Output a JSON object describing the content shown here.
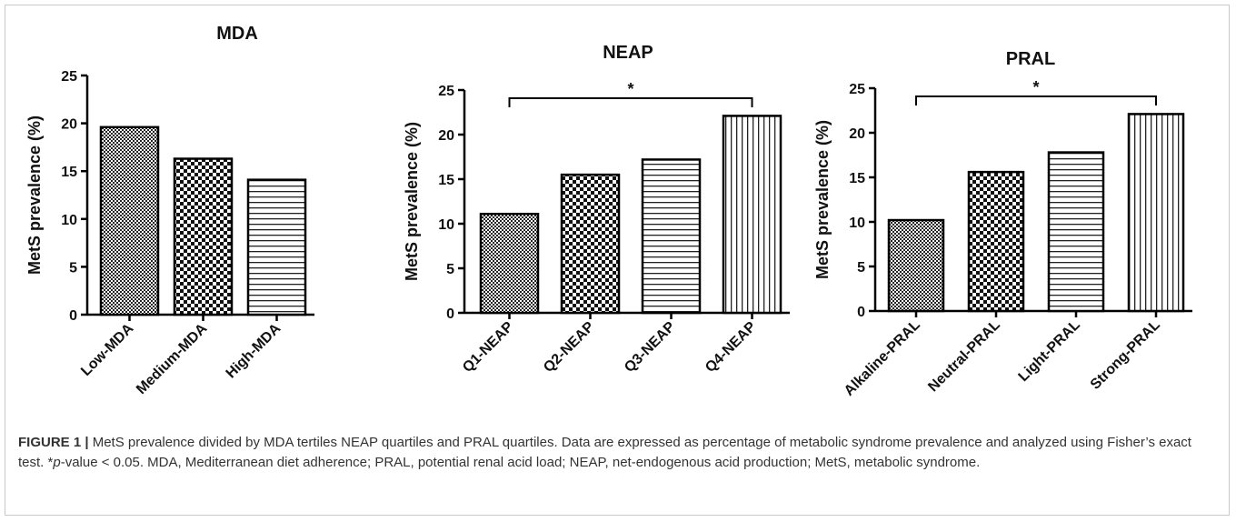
{
  "chart_data": [
    {
      "type": "bar",
      "title": "MDA",
      "ylabel": "MetS prevalence (%)",
      "xlabel": "",
      "ylim": [
        0,
        25
      ],
      "yticks": [
        0,
        5,
        10,
        15,
        20,
        25
      ],
      "categories": [
        "Low-MDA",
        "Medium-MDA",
        "High-MDA"
      ],
      "values": [
        19.6,
        16.3,
        14.1
      ],
      "patterns": [
        "checker-fine",
        "checker-coarse",
        "horizontal-lines"
      ],
      "grid": false,
      "significance": null
    },
    {
      "type": "bar",
      "title": "NEAP",
      "ylabel": "MetS prevalence (%)",
      "xlabel": "",
      "ylim": [
        0,
        25
      ],
      "yticks": [
        0,
        5,
        10,
        15,
        20,
        25
      ],
      "categories": [
        "Q1-NEAP",
        "Q2-NEAP",
        "Q3-NEAP",
        "Q4-NEAP"
      ],
      "values": [
        11.1,
        15.5,
        17.2,
        22.1
      ],
      "patterns": [
        "checker-fine",
        "checker-coarse",
        "horizontal-lines",
        "vertical-lines"
      ],
      "grid": false,
      "significance": {
        "from": 0,
        "to": 3,
        "label": "*"
      }
    },
    {
      "type": "bar",
      "title": "PRAL",
      "ylabel": "MetS prevalence (%)",
      "xlabel": "",
      "ylim": [
        0,
        25
      ],
      "yticks": [
        0,
        5,
        10,
        15,
        20,
        25
      ],
      "categories": [
        "Alkaline-PRAL",
        "Neutral-PRAL",
        "Light-PRAL",
        "Strong-PRAL"
      ],
      "values": [
        10.2,
        15.6,
        17.8,
        22.1
      ],
      "patterns": [
        "checker-fine",
        "checker-coarse",
        "horizontal-lines",
        "vertical-lines"
      ],
      "grid": false,
      "significance": {
        "from": 0,
        "to": 3,
        "label": "*"
      }
    }
  ],
  "caption": {
    "figure_label": "FIGURE 1 |",
    "text_1": " MetS prevalence divided by MDA tertiles NEAP quartiles and PRAL quartiles. Data are expressed as percentage of metabolic syndrome prevalence and analyzed using Fisher’s exact test. *",
    "p_italic": "p",
    "text_2": "-value < 0.05. MDA, Mediterranean diet adherence; PRAL, potential renal acid load; NEAP, net-endogenous acid production; MetS, metabolic syndrome."
  }
}
